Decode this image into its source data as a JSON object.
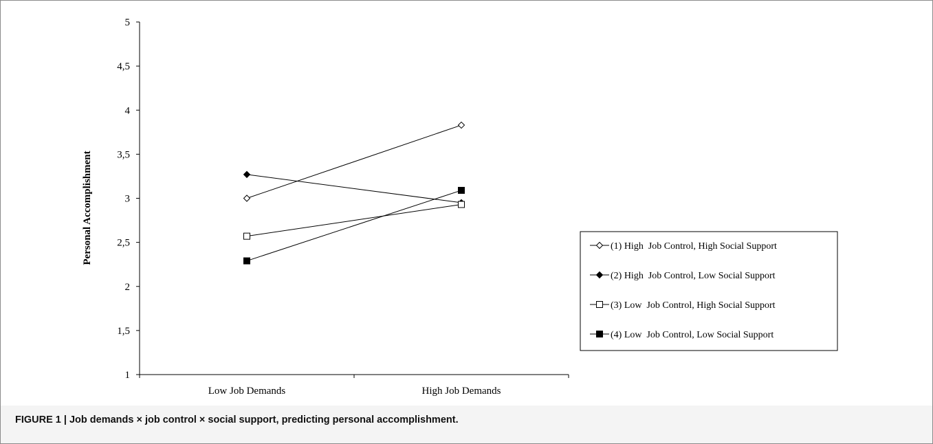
{
  "figure": {
    "caption": "FIGURE 1 | Job demands × job control × social support, predicting personal accomplishment."
  },
  "chart_data": {
    "type": "line",
    "ylabel": "Personal Accomplishment",
    "xlabel": "",
    "categories": [
      "Low Job Demands",
      "High Job Demands"
    ],
    "ylim": [
      1,
      5
    ],
    "yticks": [
      1,
      1.5,
      2,
      2.5,
      3,
      3.5,
      4,
      4.5,
      5
    ],
    "ytick_labels": [
      "1",
      "1,5",
      "2",
      "2,5",
      "3",
      "3,5",
      "4",
      "4,5",
      "5"
    ],
    "grid": false,
    "legend_position": "right",
    "series": [
      {
        "name": "(1) High  Job Control, High Social Support",
        "marker": "diamond-open",
        "values": [
          3.0,
          3.83
        ]
      },
      {
        "name": "(2) High  Job Control, Low Social Support",
        "marker": "diamond-filled",
        "values": [
          3.27,
          2.95
        ]
      },
      {
        "name": "(3) Low  Job Control, High Social Support",
        "marker": "square-open",
        "values": [
          2.57,
          2.93
        ]
      },
      {
        "name": "(4) Low  Job Control, Low Social Support",
        "marker": "square-filled",
        "values": [
          2.29,
          3.09
        ]
      }
    ],
    "colors": {
      "line": "#000000",
      "axis": "#000000"
    }
  }
}
